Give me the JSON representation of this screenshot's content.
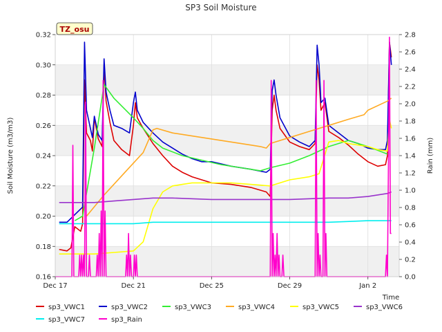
{
  "chart_data": {
    "type": "line",
    "title": "SP3 Soil Moisture",
    "tag": "TZ_osu",
    "xlabel": "Time",
    "ylabel": "Soil Moisture (m3/m3)",
    "y2label": "Rain (mm)",
    "xlim": [
      0,
      17.6
    ],
    "ylim": [
      0.16,
      0.32
    ],
    "y2lim": [
      0.0,
      2.8
    ],
    "x_ticks": [
      {
        "x": 0,
        "label": "Dec 17"
      },
      {
        "x": 4,
        "label": "Dec 21"
      },
      {
        "x": 8,
        "label": "Dec 25"
      },
      {
        "x": 12,
        "label": "Dec 29"
      },
      {
        "x": 16,
        "label": "Jan 2"
      }
    ],
    "y_ticks": [
      "0.16",
      "0.18",
      "0.20",
      "0.22",
      "0.24",
      "0.26",
      "0.28",
      "0.30",
      "0.32"
    ],
    "y2_ticks": [
      "0.0",
      "0.2",
      "0.4",
      "0.6",
      "0.8",
      "1.0",
      "1.2",
      "1.4",
      "1.6",
      "1.8",
      "2.0",
      "2.2",
      "2.4",
      "2.6",
      "2.8"
    ],
    "grid": true,
    "banded_background": true,
    "legend_position": "bottom",
    "series": [
      {
        "name": "sp3_VWC1",
        "color": "#dd0000",
        "axis": "left",
        "points": [
          [
            0.2,
            0.178
          ],
          [
            0.6,
            0.177
          ],
          [
            0.8,
            0.179
          ],
          [
            1.0,
            0.193
          ],
          [
            1.3,
            0.19
          ],
          [
            1.4,
            0.195
          ],
          [
            1.5,
            0.29
          ],
          [
            1.6,
            0.255
          ],
          [
            1.8,
            0.25
          ],
          [
            1.9,
            0.243
          ],
          [
            2.0,
            0.265
          ],
          [
            2.2,
            0.251
          ],
          [
            2.4,
            0.246
          ],
          [
            2.5,
            0.3
          ],
          [
            2.6,
            0.276
          ],
          [
            2.8,
            0.262
          ],
          [
            3.0,
            0.25
          ],
          [
            3.4,
            0.244
          ],
          [
            3.8,
            0.24
          ],
          [
            4.0,
            0.26
          ],
          [
            4.1,
            0.275
          ],
          [
            4.2,
            0.265
          ],
          [
            4.5,
            0.258
          ],
          [
            5.0,
            0.248
          ],
          [
            5.5,
            0.24
          ],
          [
            6.0,
            0.233
          ],
          [
            6.5,
            0.229
          ],
          [
            7.0,
            0.226
          ],
          [
            7.5,
            0.224
          ],
          [
            8.0,
            0.222
          ],
          [
            9.0,
            0.221
          ],
          [
            10.0,
            0.219
          ],
          [
            10.8,
            0.216
          ],
          [
            11.0,
            0.213
          ],
          [
            11.1,
            0.27
          ],
          [
            11.2,
            0.28
          ],
          [
            11.3,
            0.27
          ],
          [
            11.5,
            0.258
          ],
          [
            12.0,
            0.249
          ],
          [
            12.5,
            0.246
          ],
          [
            13.0,
            0.244
          ],
          [
            13.3,
            0.248
          ],
          [
            13.4,
            0.3
          ],
          [
            13.5,
            0.29
          ],
          [
            13.6,
            0.27
          ],
          [
            13.8,
            0.275
          ],
          [
            14.0,
            0.256
          ],
          [
            14.5,
            0.252
          ],
          [
            15.0,
            0.247
          ],
          [
            15.5,
            0.241
          ],
          [
            16.0,
            0.236
          ],
          [
            16.5,
            0.233
          ],
          [
            16.9,
            0.234
          ],
          [
            17.0,
            0.24
          ],
          [
            17.1,
            0.315
          ],
          [
            17.2,
            0.305
          ]
        ]
      },
      {
        "name": "sp3_VWC2",
        "color": "#0000cc",
        "axis": "left",
        "points": [
          [
            0.2,
            0.196
          ],
          [
            0.6,
            0.196
          ],
          [
            1.0,
            0.201
          ],
          [
            1.4,
            0.206
          ],
          [
            1.5,
            0.315
          ],
          [
            1.6,
            0.27
          ],
          [
            1.8,
            0.258
          ],
          [
            1.9,
            0.252
          ],
          [
            2.0,
            0.266
          ],
          [
            2.2,
            0.254
          ],
          [
            2.4,
            0.25
          ],
          [
            2.5,
            0.304
          ],
          [
            2.6,
            0.282
          ],
          [
            2.8,
            0.27
          ],
          [
            3.0,
            0.26
          ],
          [
            3.4,
            0.258
          ],
          [
            3.8,
            0.255
          ],
          [
            4.0,
            0.275
          ],
          [
            4.1,
            0.282
          ],
          [
            4.2,
            0.27
          ],
          [
            4.5,
            0.262
          ],
          [
            5.0,
            0.255
          ],
          [
            5.5,
            0.249
          ],
          [
            6.0,
            0.245
          ],
          [
            6.5,
            0.241
          ],
          [
            7.0,
            0.238
          ],
          [
            7.5,
            0.236
          ],
          [
            8.0,
            0.236
          ],
          [
            9.0,
            0.233
          ],
          [
            10.0,
            0.231
          ],
          [
            10.8,
            0.229
          ],
          [
            11.0,
            0.231
          ],
          [
            11.1,
            0.283
          ],
          [
            11.2,
            0.29
          ],
          [
            11.3,
            0.28
          ],
          [
            11.5,
            0.265
          ],
          [
            12.0,
            0.253
          ],
          [
            12.5,
            0.249
          ],
          [
            13.0,
            0.246
          ],
          [
            13.3,
            0.25
          ],
          [
            13.4,
            0.313
          ],
          [
            13.5,
            0.3
          ],
          [
            13.6,
            0.275
          ],
          [
            13.8,
            0.278
          ],
          [
            14.0,
            0.26
          ],
          [
            14.5,
            0.255
          ],
          [
            15.0,
            0.25
          ],
          [
            15.5,
            0.248
          ],
          [
            16.0,
            0.245
          ],
          [
            16.5,
            0.244
          ],
          [
            16.9,
            0.244
          ],
          [
            17.0,
            0.25
          ],
          [
            17.1,
            0.315
          ],
          [
            17.2,
            0.3
          ]
        ]
      },
      {
        "name": "sp3_VWC3",
        "color": "#33ee33",
        "axis": "left",
        "points": [
          [
            1.0,
            0.197
          ],
          [
            1.4,
            0.2
          ],
          [
            2.0,
            0.245
          ],
          [
            2.5,
            0.287
          ],
          [
            3.0,
            0.278
          ],
          [
            4.0,
            0.265
          ],
          [
            4.5,
            0.258
          ],
          [
            5.0,
            0.25
          ],
          [
            5.5,
            0.245
          ],
          [
            6.5,
            0.24
          ],
          [
            7.5,
            0.237
          ],
          [
            8.5,
            0.234
          ],
          [
            9.5,
            0.232
          ],
          [
            10.5,
            0.23
          ],
          [
            11.0,
            0.232
          ],
          [
            12.0,
            0.235
          ],
          [
            13.0,
            0.24
          ],
          [
            14.0,
            0.246
          ],
          [
            15.0,
            0.25
          ],
          [
            16.0,
            0.246
          ],
          [
            17.0,
            0.241
          ]
        ]
      },
      {
        "name": "sp3_VWC4",
        "color": "#ffaa22",
        "axis": "left",
        "points": [
          [
            1.6,
            0.2
          ],
          [
            2.5,
            0.214
          ],
          [
            3.5,
            0.228
          ],
          [
            4.5,
            0.242
          ],
          [
            5.0,
            0.257
          ],
          [
            5.2,
            0.258
          ],
          [
            6.0,
            0.255
          ],
          [
            7.0,
            0.253
          ],
          [
            8.0,
            0.251
          ],
          [
            9.0,
            0.249
          ],
          [
            10.0,
            0.247
          ],
          [
            10.5,
            0.246
          ],
          [
            10.8,
            0.245
          ],
          [
            11.0,
            0.248
          ],
          [
            12.0,
            0.252
          ],
          [
            13.0,
            0.256
          ],
          [
            14.0,
            0.26
          ],
          [
            15.0,
            0.264
          ],
          [
            15.8,
            0.267
          ],
          [
            16.0,
            0.27
          ],
          [
            17.0,
            0.276
          ],
          [
            17.2,
            0.278
          ]
        ]
      },
      {
        "name": "sp3_VWC5",
        "color": "#ffff00",
        "axis": "left",
        "points": [
          [
            0.2,
            0.175
          ],
          [
            1.0,
            0.175
          ],
          [
            2.0,
            0.175
          ],
          [
            3.0,
            0.176
          ],
          [
            4.0,
            0.177
          ],
          [
            4.5,
            0.183
          ],
          [
            5.0,
            0.205
          ],
          [
            5.5,
            0.216
          ],
          [
            6.0,
            0.22
          ],
          [
            6.5,
            0.221
          ],
          [
            7.0,
            0.222
          ],
          [
            8.0,
            0.222
          ],
          [
            9.0,
            0.222
          ],
          [
            10.0,
            0.221
          ],
          [
            11.0,
            0.22
          ],
          [
            12.0,
            0.224
          ],
          [
            13.0,
            0.226
          ],
          [
            13.5,
            0.228
          ],
          [
            14.0,
            0.249
          ],
          [
            14.5,
            0.25
          ],
          [
            15.0,
            0.248
          ],
          [
            15.5,
            0.247
          ],
          [
            16.0,
            0.246
          ],
          [
            16.5,
            0.244
          ],
          [
            17.0,
            0.243
          ],
          [
            17.1,
            0.264
          ],
          [
            17.2,
            0.258
          ]
        ]
      },
      {
        "name": "sp3_VWC6",
        "color": "#9933cc",
        "axis": "left",
        "points": [
          [
            0.2,
            0.209
          ],
          [
            1.0,
            0.209
          ],
          [
            2.0,
            0.209
          ],
          [
            3.0,
            0.21
          ],
          [
            4.0,
            0.211
          ],
          [
            5.0,
            0.212
          ],
          [
            6.0,
            0.212
          ],
          [
            8.0,
            0.211
          ],
          [
            10.0,
            0.211
          ],
          [
            12.0,
            0.211
          ],
          [
            14.0,
            0.212
          ],
          [
            15.0,
            0.212
          ],
          [
            16.0,
            0.213
          ],
          [
            17.0,
            0.215
          ],
          [
            17.2,
            0.216
          ]
        ]
      },
      {
        "name": "sp3_VWC7",
        "color": "#00eeee",
        "axis": "left",
        "points": [
          [
            0.2,
            0.195
          ],
          [
            2.0,
            0.195
          ],
          [
            4.0,
            0.195
          ],
          [
            5.0,
            0.196
          ],
          [
            6.0,
            0.196
          ],
          [
            8.0,
            0.196
          ],
          [
            10.0,
            0.196
          ],
          [
            12.0,
            0.196
          ],
          [
            14.0,
            0.196
          ],
          [
            16.0,
            0.197
          ],
          [
            17.2,
            0.197
          ]
        ]
      },
      {
        "name": "sp3_Rain",
        "color": "#ff00cc",
        "axis": "right",
        "points": [
          [
            0.0,
            0.0
          ],
          [
            0.85,
            0.0
          ],
          [
            0.9,
            1.52
          ],
          [
            0.95,
            0.0
          ],
          [
            1.2,
            0.0
          ],
          [
            1.25,
            0.25
          ],
          [
            1.3,
            0.0
          ],
          [
            1.35,
            0.25
          ],
          [
            1.4,
            0.0
          ],
          [
            1.45,
            0.25
          ],
          [
            1.5,
            0.0
          ],
          [
            1.55,
            2.02
          ],
          [
            1.6,
            0.0
          ],
          [
            1.7,
            0.0
          ],
          [
            1.75,
            0.25
          ],
          [
            1.8,
            0.0
          ],
          [
            2.1,
            0.0
          ],
          [
            2.15,
            0.25
          ],
          [
            2.2,
            0.0
          ],
          [
            2.25,
            0.5
          ],
          [
            2.3,
            0.0
          ],
          [
            2.35,
            0.76
          ],
          [
            2.4,
            0.0
          ],
          [
            2.45,
            2.27
          ],
          [
            2.5,
            0.0
          ],
          [
            2.55,
            0.76
          ],
          [
            2.6,
            0.0
          ],
          [
            3.6,
            0.0
          ],
          [
            3.65,
            0.25
          ],
          [
            3.7,
            0.0
          ],
          [
            3.75,
            0.5
          ],
          [
            3.8,
            0.0
          ],
          [
            3.85,
            0.25
          ],
          [
            3.9,
            0.0
          ],
          [
            4.0,
            0.0
          ],
          [
            4.05,
            0.25
          ],
          [
            4.1,
            0.0
          ],
          [
            4.15,
            0.25
          ],
          [
            4.2,
            0.0
          ],
          [
            11.0,
            0.0
          ],
          [
            11.05,
            2.27
          ],
          [
            11.1,
            0.0
          ],
          [
            11.15,
            0.5
          ],
          [
            11.2,
            0.0
          ],
          [
            11.25,
            0.25
          ],
          [
            11.3,
            0.0
          ],
          [
            11.35,
            0.5
          ],
          [
            11.4,
            0.0
          ],
          [
            11.45,
            0.25
          ],
          [
            11.5,
            0.0
          ],
          [
            11.6,
            0.0
          ],
          [
            11.65,
            0.25
          ],
          [
            11.7,
            0.0
          ],
          [
            13.3,
            0.0
          ],
          [
            13.35,
            2.27
          ],
          [
            13.4,
            0.0
          ],
          [
            13.45,
            0.5
          ],
          [
            13.5,
            0.0
          ],
          [
            13.55,
            0.25
          ],
          [
            13.6,
            0.0
          ],
          [
            13.7,
            0.0
          ],
          [
            13.75,
            2.27
          ],
          [
            13.8,
            0.0
          ],
          [
            13.85,
            0.5
          ],
          [
            13.9,
            0.0
          ],
          [
            14.0,
            0.0
          ],
          [
            16.9,
            0.0
          ],
          [
            16.95,
            0.25
          ],
          [
            17.0,
            0.0
          ],
          [
            17.05,
            1.26
          ],
          [
            17.1,
            2.77
          ],
          [
            17.15,
            0.5
          ],
          [
            17.2,
            0.5
          ]
        ]
      }
    ]
  }
}
